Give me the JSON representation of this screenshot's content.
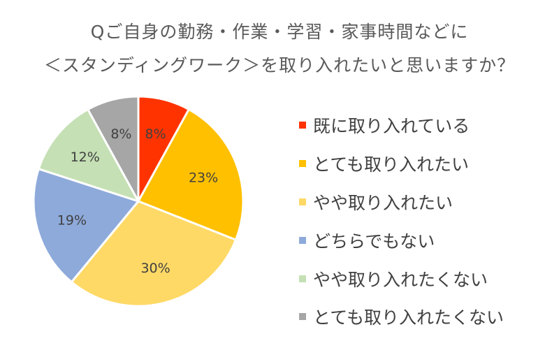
{
  "chart_data": {
    "type": "pie",
    "title_lines": [
      "Qご自身の勤務・作業・学習・家事時間などに",
      "＜スタンディングワーク＞を取り入れたいと思いますか？"
    ],
    "categories": [
      "既に取り入れている",
      "とても取り入れたい",
      "やや取り入れたい",
      "どちらでもない",
      "やや取り入れたくない",
      "とても取り入れたくない"
    ],
    "values": [
      8,
      23,
      30,
      19,
      12,
      8
    ],
    "value_labels": [
      "8%",
      "23%",
      "30%",
      "19%",
      "12%",
      "8%"
    ],
    "colors": [
      "#ff3300",
      "#ffc000",
      "#ffd966",
      "#8eaadb",
      "#c5e0b4",
      "#a6a6a6"
    ],
    "start_angle_deg": 0,
    "direction": "clockwise",
    "legend_position": "right"
  }
}
